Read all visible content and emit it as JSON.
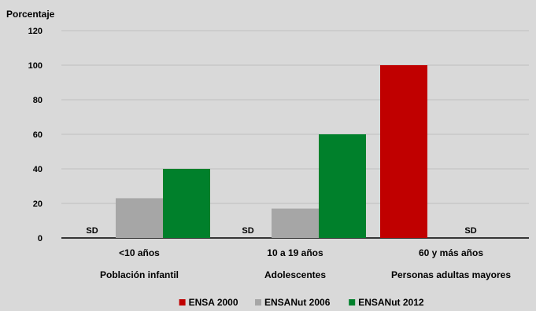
{
  "chart_data": {
    "type": "bar",
    "ylabel": "Porcentaje",
    "ylim": [
      0,
      120
    ],
    "yticks": [
      "0",
      "20",
      "40",
      "60",
      "80",
      "100",
      "120"
    ],
    "grid": true,
    "legend_position": "bottom",
    "categories": [
      "<10 años",
      "10 a 19 años",
      "60 y más años"
    ],
    "group_labels": [
      "Población infantil",
      "Adolescentes",
      "Personas adultas mayores"
    ],
    "missing_label": "SD",
    "series": [
      {
        "name": "ENSA 2000",
        "color": "#c00000",
        "values": [
          null,
          null,
          100
        ]
      },
      {
        "name": "ENSANut 2006",
        "color": "#a6a6a6",
        "values": [
          23,
          17,
          null
        ]
      },
      {
        "name": "ENSANut 2012",
        "color": "#00802b",
        "values": [
          40,
          60,
          null
        ]
      }
    ]
  }
}
